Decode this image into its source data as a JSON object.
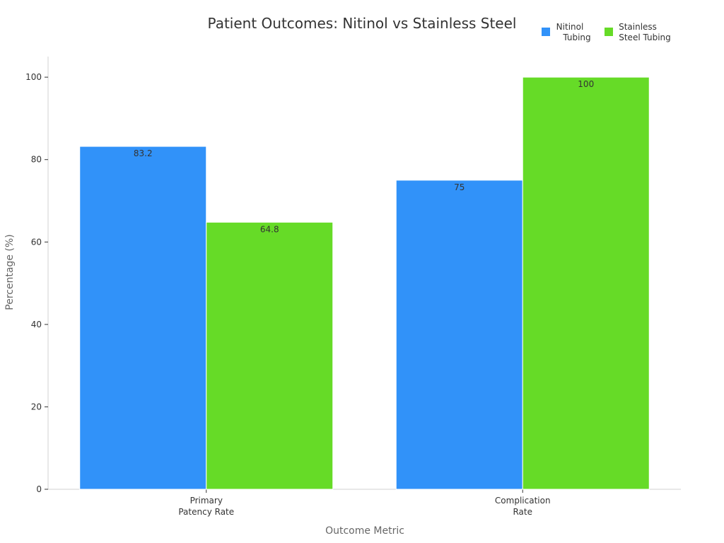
{
  "chart_data": {
    "type": "bar",
    "title": "Patient Outcomes: Nitinol vs Stainless Steel",
    "xlabel": "Outcome Metric",
    "ylabel": "Percentage (%)",
    "categories": [
      [
        "Primary",
        "Patency Rate"
      ],
      [
        "Complication",
        "Rate"
      ]
    ],
    "series": [
      {
        "name": [
          "Nitinol",
          "Tubing"
        ],
        "color": "#3192f9",
        "values": [
          83.2,
          75
        ],
        "labels": [
          "83.2",
          "75"
        ]
      },
      {
        "name": [
          "Stainless",
          "Steel Tubing"
        ],
        "color": "#66db27",
        "values": [
          64.8,
          100
        ],
        "labels": [
          "64.8",
          "100"
        ]
      }
    ],
    "ylim": [
      0,
      105
    ],
    "yticks": [
      0,
      20,
      40,
      60,
      80,
      100
    ],
    "grid": false,
    "legend": "top-right"
  }
}
